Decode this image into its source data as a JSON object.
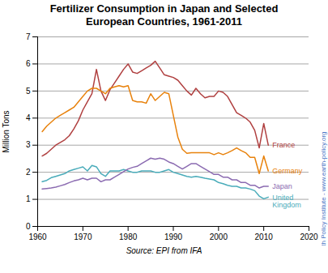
{
  "chart_data": {
    "type": "line",
    "title": "Fertilizer Consumption in Japan and Selected\nEuropean Countries, 1961-2011",
    "ylabel": "Million Tons",
    "caption": "Source: EPI from IFA",
    "annotations": [
      {
        "text": "Earth Policy Institute - www.earth-policy.org",
        "color": "#4472C4"
      }
    ],
    "x": [
      1961,
      1962,
      1963,
      1964,
      1965,
      1966,
      1967,
      1968,
      1969,
      1970,
      1971,
      1972,
      1973,
      1974,
      1975,
      1976,
      1977,
      1978,
      1979,
      1980,
      1981,
      1982,
      1983,
      1984,
      1985,
      1986,
      1987,
      1988,
      1989,
      1990,
      1991,
      1992,
      1993,
      1994,
      1995,
      1996,
      1997,
      1998,
      1999,
      2000,
      2001,
      2002,
      2003,
      2004,
      2005,
      2006,
      2007,
      2008,
      2009,
      2010,
      2011
    ],
    "xlim": [
      1960,
      2020
    ],
    "xticks": [
      1960,
      1970,
      1980,
      1990,
      2000,
      2010,
      2020
    ],
    "ylim": [
      0,
      7
    ],
    "yticks": [
      0,
      1,
      2,
      3,
      4,
      5,
      6,
      7
    ],
    "grid": "y",
    "series": [
      {
        "name": "France",
        "color": "#B04040",
        "values": [
          2.6,
          2.7,
          2.85,
          3.0,
          3.1,
          3.2,
          3.35,
          3.6,
          3.9,
          4.3,
          4.6,
          4.9,
          5.8,
          5.0,
          4.65,
          5.05,
          5.3,
          5.55,
          5.8,
          6.0,
          5.7,
          5.65,
          5.75,
          5.85,
          5.95,
          6.1,
          5.85,
          5.6,
          5.55,
          5.5,
          5.4,
          5.2,
          5.0,
          4.85,
          5.1,
          4.9,
          4.75,
          4.8,
          4.8,
          5.0,
          4.95,
          4.8,
          4.5,
          4.2,
          4.1,
          4.0,
          3.85,
          3.55,
          2.9,
          3.8,
          3.0
        ]
      },
      {
        "name": "Germany",
        "color": "#E8820C",
        "values": [
          3.5,
          3.7,
          3.85,
          4.0,
          4.1,
          4.2,
          4.3,
          4.4,
          4.6,
          4.8,
          5.0,
          5.1,
          5.1,
          5.0,
          4.9,
          5.1,
          5.15,
          5.2,
          5.15,
          5.2,
          4.65,
          4.6,
          4.6,
          4.55,
          4.9,
          4.65,
          4.8,
          4.95,
          4.9,
          4.1,
          3.3,
          2.85,
          2.7,
          2.72,
          2.72,
          2.72,
          2.72,
          2.72,
          2.65,
          2.72,
          2.65,
          2.72,
          2.8,
          2.9,
          2.8,
          2.72,
          2.55,
          2.55,
          1.95,
          2.6,
          2.05
        ]
      },
      {
        "name": "United\nKingdom",
        "color": "#4AACBA",
        "values": [
          1.65,
          1.7,
          1.8,
          1.85,
          1.9,
          1.95,
          2.05,
          2.1,
          2.15,
          2.2,
          2.05,
          2.25,
          2.2,
          1.95,
          1.85,
          2.05,
          2.05,
          2.05,
          2.1,
          2.05,
          2.0,
          2.0,
          2.05,
          2.05,
          2.05,
          2.0,
          2.0,
          2.05,
          2.1,
          2.0,
          1.95,
          1.9,
          1.85,
          1.82,
          1.85,
          1.82,
          1.78,
          1.75,
          1.72,
          1.62,
          1.58,
          1.52,
          1.48,
          1.48,
          1.42,
          1.42,
          1.38,
          1.32,
          1.12,
          1.02,
          1.08
        ]
      },
      {
        "name": "Japan",
        "color": "#8B6BB1",
        "values": [
          1.38,
          1.4,
          1.42,
          1.45,
          1.5,
          1.55,
          1.62,
          1.68,
          1.72,
          1.78,
          1.72,
          1.78,
          1.78,
          1.65,
          1.72,
          1.72,
          1.82,
          1.92,
          2.02,
          2.12,
          2.18,
          2.22,
          2.32,
          2.42,
          2.52,
          2.48,
          2.52,
          2.48,
          2.38,
          2.32,
          2.22,
          2.12,
          2.22,
          2.32,
          2.32,
          2.22,
          2.12,
          2.02,
          1.92,
          1.92,
          1.82,
          1.82,
          1.72,
          1.72,
          1.62,
          1.62,
          1.52,
          1.52,
          1.42,
          1.48,
          1.48
        ]
      }
    ]
  }
}
